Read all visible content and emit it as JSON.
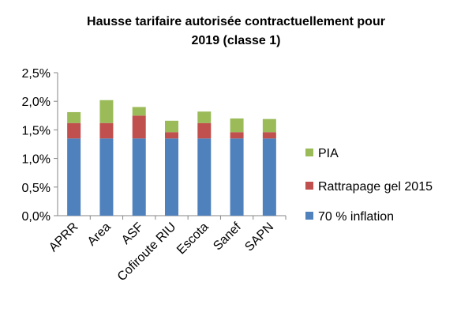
{
  "chart_data": {
    "type": "bar",
    "stacked": true,
    "title_lines": [
      "Hausse tarifaire autorisée contractuellement pour",
      "2019 (classe 1)"
    ],
    "categories": [
      "APRR",
      "Area",
      "ASF",
      "Cofiroute RIU",
      "Escota",
      "Sanef",
      "SAPN"
    ],
    "series": [
      {
        "name": "70 % inflation",
        "color": "#4f81bd",
        "values": [
          1.35,
          1.35,
          1.35,
          1.35,
          1.35,
          1.35,
          1.35
        ]
      },
      {
        "name": "Rattrapage gel 2015",
        "color": "#c0504d",
        "values": [
          0.27,
          0.27,
          0.4,
          0.11,
          0.27,
          0.11,
          0.11
        ]
      },
      {
        "name": "PIA",
        "color": "#9bbb59",
        "values": [
          0.19,
          0.4,
          0.15,
          0.2,
          0.2,
          0.24,
          0.23
        ]
      }
    ],
    "y_ticks": [
      "0,0%",
      "0,5%",
      "1,0%",
      "1,5%",
      "2,0%",
      "2,5%"
    ],
    "ylim": [
      0,
      2.5
    ],
    "grid": false,
    "legend_position": "right",
    "legend_order": [
      "PIA",
      "Rattrapage gel 2015",
      "70 % inflation"
    ]
  }
}
